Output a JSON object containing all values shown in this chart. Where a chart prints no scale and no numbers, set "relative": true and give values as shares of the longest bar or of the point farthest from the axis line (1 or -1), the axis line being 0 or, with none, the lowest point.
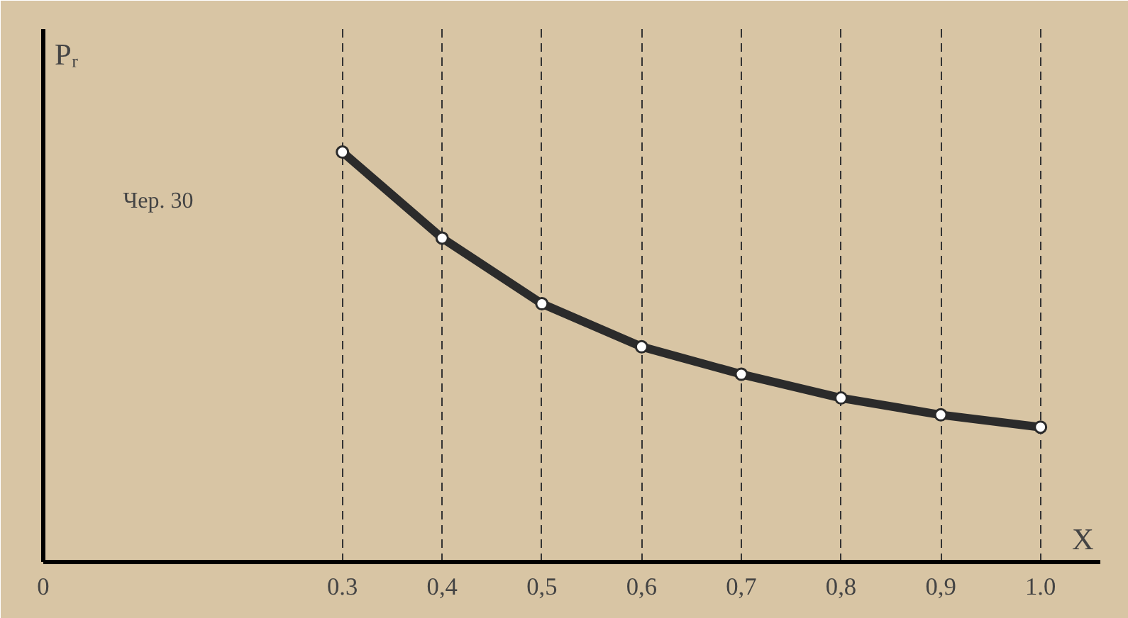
{
  "chart_data": {
    "type": "line",
    "xlabel": "X",
    "ylabel": "Pᵣ",
    "annotations": [
      "Чер. 30"
    ],
    "x": [
      0.3,
      0.4,
      0.5,
      0.6,
      0.7,
      0.8,
      0.9,
      1.0
    ],
    "relative": true,
    "series": [
      {
        "color": "#2b2b2b",
        "values": [
          1,
          0.79,
          0.63,
          0.525,
          0.458,
          0.4,
          0.359,
          0.329
        ]
      }
    ],
    "xlim": [
      0,
      1.06
    ],
    "xticks": [
      0,
      {
        "value": 0.3,
        "label": "0.3"
      },
      {
        "value": 0.4,
        "label": "0,4"
      },
      {
        "value": 0.5,
        "label": "0,5"
      },
      {
        "value": 0.6,
        "label": "0,6"
      },
      {
        "value": 0.7,
        "label": "0,7"
      },
      {
        "value": 0.8,
        "label": "0,8"
      },
      {
        "value": 0.9,
        "label": "0,9"
      },
      {
        "value": 1.0,
        "label": "1.0"
      }
    ],
    "grid": "x",
    "marker": "circle",
    "line_style": "solid"
  }
}
